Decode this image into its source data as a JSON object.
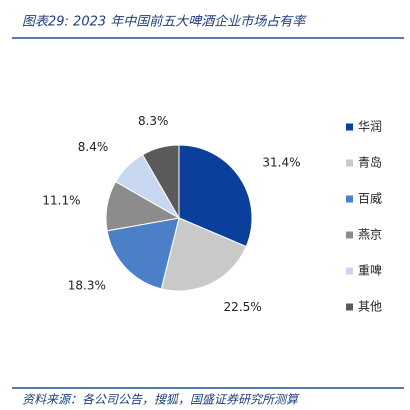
{
  "chart_data": {
    "type": "pie",
    "title": "图表29:  2023 年中国前五大啤酒企业市场占有率",
    "categories": [
      "华润",
      "青岛",
      "百威",
      "燕京",
      "重啤",
      "其他"
    ],
    "values": [
      31.4,
      22.5,
      18.3,
      11.1,
      8.4,
      8.3
    ],
    "value_labels": [
      "31.4%",
      "22.5%",
      "18.3%",
      "11.1%",
      "8.4%",
      "8.3%"
    ],
    "colors": [
      "#0b3f9c",
      "#c9c9c9",
      "#4b80c9",
      "#8c8c8c",
      "#c7d7f0",
      "#5a5a5a"
    ],
    "legend": "right",
    "source": "资料来源：各公司公告，搜狐，国盛证券研究所测算"
  }
}
